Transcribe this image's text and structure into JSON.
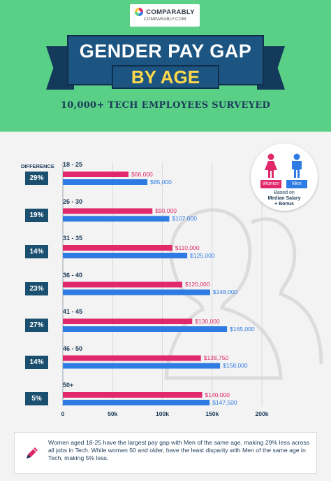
{
  "brand": {
    "name": "COMPARABLY",
    "url": "COMPARABLY.COM"
  },
  "header": {
    "title_line1": "GENDER PAY GAP",
    "title_line2": "BY AGE",
    "subtitle": "10,000+ TECH EMPLOYEES SURVEYED"
  },
  "colors": {
    "women": "#e0286a",
    "men": "#2e7be3",
    "header_bg": "#5ad087",
    "banner": "#1c5582",
    "badge": "#1a4f70"
  },
  "difference_label": "DIFFERENCE",
  "legend": {
    "women": "Women",
    "men": "Men",
    "note_line1": "Based on",
    "note_line2": "Median Salary",
    "note_line3": "+ Bonus"
  },
  "chart_data": {
    "type": "bar",
    "orientation": "horizontal",
    "categories": [
      "18 - 25",
      "26 - 30",
      "31 - 35",
      "36 - 40",
      "41 - 45",
      "46 - 50",
      "50+"
    ],
    "series": [
      {
        "name": "Women",
        "values": [
          66000,
          90000,
          110000,
          120000,
          130000,
          138750,
          140000
        ],
        "labels": [
          "$66,000",
          "$90,000",
          "$110,000",
          "$120,000",
          "$130,000",
          "$138,750",
          "$140,000"
        ]
      },
      {
        "name": "Men",
        "values": [
          85000,
          107000,
          125000,
          148000,
          165000,
          158000,
          147500
        ],
        "labels": [
          "$85,000",
          "$107,000",
          "$125,000",
          "$148,000",
          "$165,000",
          "$158,000",
          "$147,500"
        ]
      }
    ],
    "differences": [
      "29%",
      "19%",
      "14%",
      "23%",
      "27%",
      "14%",
      "5%"
    ],
    "xlim": [
      0,
      200000
    ],
    "xticks": [
      0,
      50000,
      100000,
      150000,
      200000
    ],
    "xtick_labels": [
      "0",
      "50k",
      "100k",
      "150k",
      "200k"
    ],
    "grid": true,
    "legend_position": "top-right"
  },
  "footer": {
    "note": "Women aged 18-25 have the largest pay gap with Men of the same age, making 29% less across all jobs in Tech.  While women 50 and older, have the least disparity with Men of the same age in Tech, making 5% less."
  }
}
